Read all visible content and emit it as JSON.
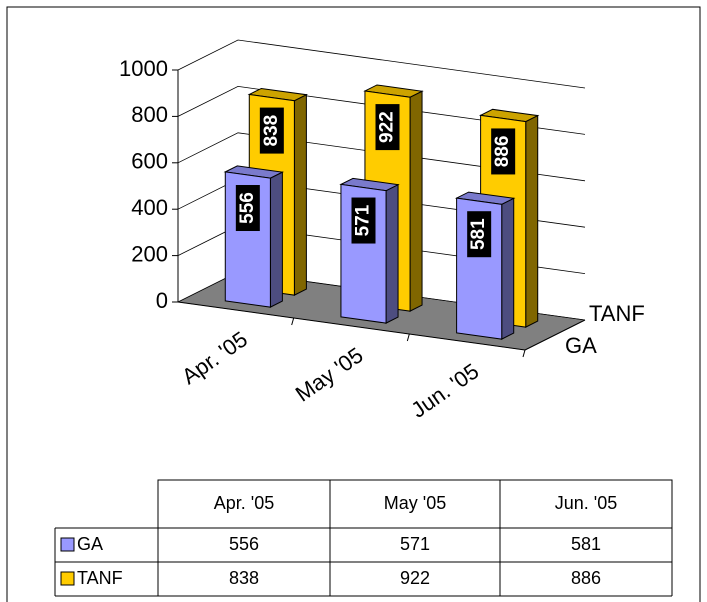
{
  "chart_data": {
    "type": "bar",
    "categories": [
      "Apr. '05",
      "May '05",
      "Jun. '05"
    ],
    "series": [
      {
        "name": "GA",
        "color": "#9999ff",
        "values": [
          556,
          571,
          581
        ]
      },
      {
        "name": "TANF",
        "color": "#ffcc00",
        "values": [
          838,
          922,
          886
        ]
      }
    ],
    "ylim": [
      0,
      1000
    ],
    "yticks": [
      0,
      200,
      400,
      600,
      800,
      1000
    ],
    "grid": true
  }
}
